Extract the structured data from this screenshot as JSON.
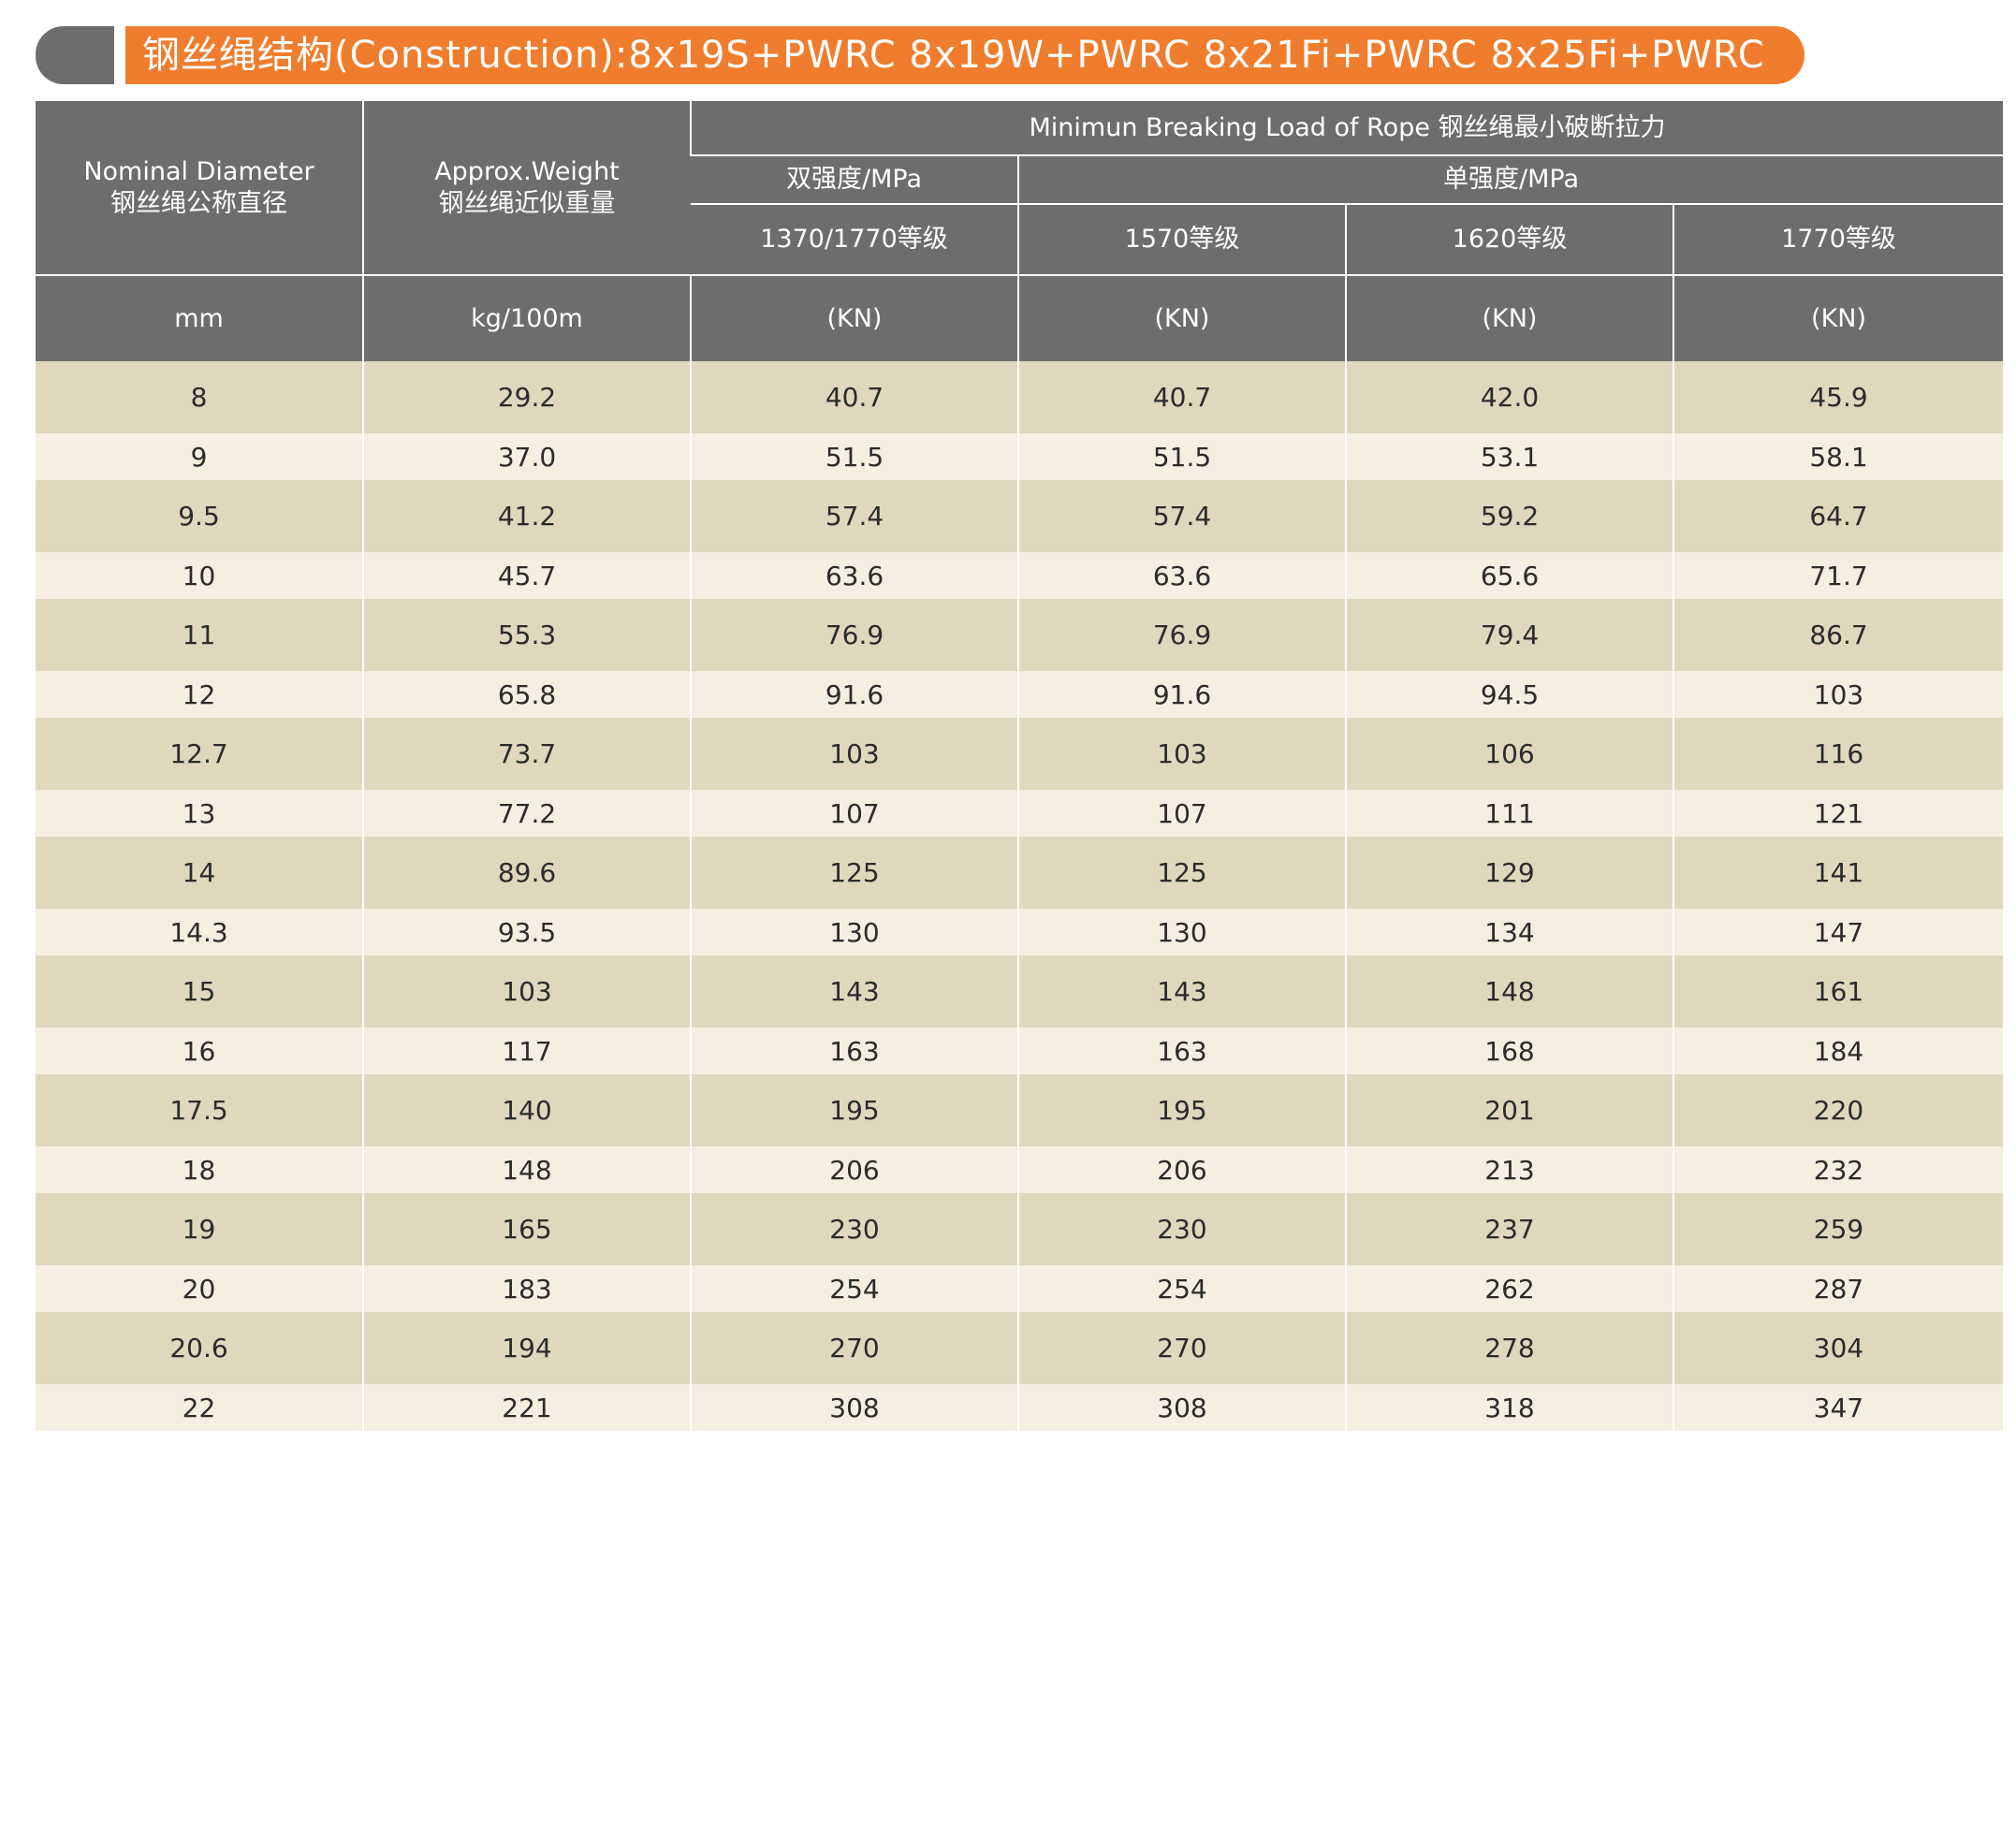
{
  "title": {
    "text": "钢丝绳结构(Construction):8x19S+PWRC 8x19W+PWRC 8x21Fi+PWRC 8x25Fi+PWRC"
  },
  "table": {
    "headers": {
      "diameter": {
        "en": "Nominal Diameter",
        "cn": "钢丝绳公称直径"
      },
      "weight": {
        "en": "Approx.Weight",
        "cn": "钢丝绳近似重量"
      },
      "breaking_load": "Minimun Breaking Load of Rope  钢丝绳最小破断拉力",
      "dual_strength": "双强度/MPa",
      "single_strength": "单强度/MPa",
      "grades": [
        "1370/1770等级",
        "1570等级",
        "1620等级",
        "1770等级"
      ]
    },
    "units": [
      "mm",
      "kg/100m",
      "(KN)",
      "(KN)",
      "(KN)",
      "(KN)"
    ],
    "rows": [
      [
        "8",
        "29.2",
        "40.7",
        "40.7",
        "42.0",
        "45.9"
      ],
      [
        "9",
        "37.0",
        "51.5",
        "51.5",
        "53.1",
        "58.1"
      ],
      [
        "9.5",
        "41.2",
        "57.4",
        "57.4",
        "59.2",
        "64.7"
      ],
      [
        "10",
        "45.7",
        "63.6",
        "63.6",
        "65.6",
        "71.7"
      ],
      [
        "11",
        "55.3",
        "76.9",
        "76.9",
        "79.4",
        "86.7"
      ],
      [
        "12",
        "65.8",
        "91.6",
        "91.6",
        "94.5",
        "103"
      ],
      [
        "12.7",
        "73.7",
        "103",
        "103",
        "106",
        "116"
      ],
      [
        "13",
        "77.2",
        "107",
        "107",
        "111",
        "121"
      ],
      [
        "14",
        "89.6",
        "125",
        "125",
        "129",
        "141"
      ],
      [
        "14.3",
        "93.5",
        "130",
        "130",
        "134",
        "147"
      ],
      [
        "15",
        "103",
        "143",
        "143",
        "148",
        "161"
      ],
      [
        "16",
        "117",
        "163",
        "163",
        "168",
        "184"
      ],
      [
        "17.5",
        "140",
        "195",
        "195",
        "201",
        "220"
      ],
      [
        "18",
        "148",
        "206",
        "206",
        "213",
        "232"
      ],
      [
        "19",
        "165",
        "230",
        "230",
        "237",
        "259"
      ],
      [
        "20",
        "183",
        "254",
        "254",
        "262",
        "287"
      ],
      [
        "20.6",
        "194",
        "270",
        "270",
        "278",
        "304"
      ],
      [
        "22",
        "221",
        "308",
        "308",
        "318",
        "347"
      ]
    ]
  },
  "colors": {
    "header_bg": "#6d6e6c",
    "accent": "#ef7d2d",
    "row_dark": "#dfd8bd",
    "row_light": "#f4efe0"
  }
}
